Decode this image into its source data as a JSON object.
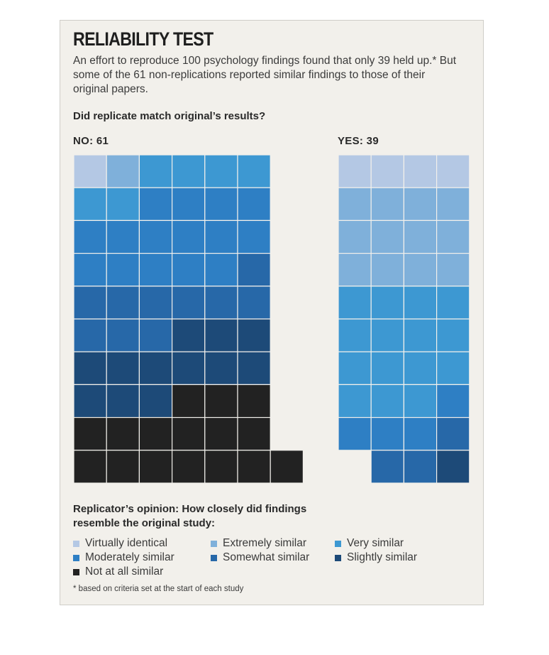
{
  "card": {
    "title": "RELIABILITY TEST",
    "intro": "An effort to reproduce 100 psychology findings found that only 39 held up.* But some of the 61 non-replications reported similar findings to those of their original papers.",
    "question": "Did replicate match original’s results?",
    "legend_title": "Replicator’s opinion: How closely did findings resemble the original study:",
    "footnote": "* based on criteria set at the start of each study"
  },
  "chart_data": {
    "type": "waffle",
    "groups": [
      {
        "label": "NO: 61",
        "total": 61,
        "columns": 6,
        "counts": {
          "Virtually identical": 1,
          "Extremely similar": 1,
          "Very similar": 6,
          "Moderately similar": 15,
          "Somewhat similar": 10,
          "Slightly similar": 12,
          "Not at all similar": 16
        },
        "overflow": 1
      },
      {
        "label": "YES: 39",
        "total": 39,
        "columns": 4,
        "counts": {
          "Virtually identical": 4,
          "Extremely similar": 12,
          "Very similar": 15,
          "Moderately similar": 4,
          "Somewhat similar": 3,
          "Slightly similar": 1
        },
        "fill_from": "bottom-right"
      }
    ],
    "categories": [
      {
        "name": "Virtually identical",
        "color": "#b4c8e4"
      },
      {
        "name": "Extremely similar",
        "color": "#7fb0da"
      },
      {
        "name": "Very similar",
        "color": "#3d98d2"
      },
      {
        "name": "Moderately similar",
        "color": "#2e7fc4"
      },
      {
        "name": "Somewhat similar",
        "color": "#2768a8"
      },
      {
        "name": "Slightly similar",
        "color": "#1d4a78"
      },
      {
        "name": "Not at all similar",
        "color": "#222222"
      }
    ]
  }
}
